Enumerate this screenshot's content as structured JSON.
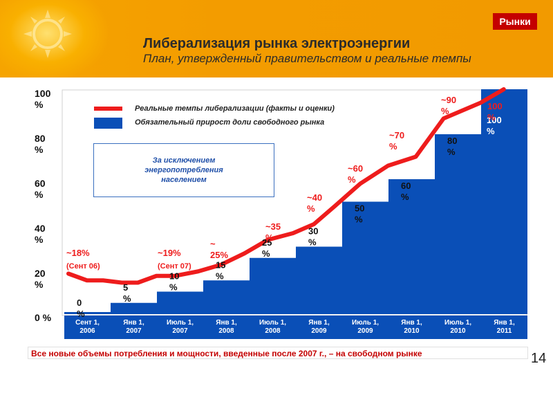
{
  "badge": "Рынки",
  "title": "Либерализация рынка электроэнергии",
  "subtitle": "План, утвержденный правительством и реальные темпы",
  "legend": {
    "line_label": "Реальные темпы либерализации (факты и оценки)",
    "bar_label": "Обязательный прирост доли свободного рынка",
    "line_color": "#ee1c1c",
    "bar_color": "#0a4fb7"
  },
  "note": "За исключением энергопотребления населением",
  "footer": "Все новые объемы потребления и мощности, введенные после 2007 г., – на свободном рынке",
  "page_number": "14",
  "chart_data": {
    "type": "bar",
    "title": "Либерализация рынка электроэнергии",
    "ylim": [
      0,
      100
    ],
    "y_ticks": [
      "0 %",
      "20 %",
      "40 %",
      "60 %",
      "80 %",
      "100 %"
    ],
    "categories": [
      "Сент 1, 2006",
      "Янв 1, 2007",
      "Июль 1, 2007",
      "Янв 1, 2008",
      "Июль 1, 2008",
      "Янв 1, 2009",
      "Июль 1, 2009",
      "Янв 1, 2010",
      "Июль 1, 2010",
      "Янв 1, 2011"
    ],
    "series": [
      {
        "name": "Обязательный прирост доли свободного рынка",
        "type": "bar",
        "values": [
          0,
          5,
          10,
          15,
          25,
          30,
          50,
          60,
          80,
          100
        ],
        "labels": [
          "0 %",
          "5 %",
          "10 %",
          "15 %",
          "25 %",
          "30 %",
          "50 %",
          "60 %",
          "80 %",
          "100 %"
        ]
      },
      {
        "name": "Реальные темпы либерализации (факты и оценки)",
        "type": "line",
        "x": [
          0,
          0.4,
          0.75,
          1.15,
          1.5,
          1.9,
          2.3,
          2.8,
          3.3,
          3.8,
          4.3,
          4.85,
          5.3,
          5.75,
          6.3,
          6.9,
          7.5,
          8.1,
          8.9,
          9.4
        ],
        "values": [
          18,
          15,
          15,
          14,
          14,
          17,
          17,
          19,
          22,
          27,
          33,
          36,
          40,
          48,
          58,
          66,
          70,
          87,
          94,
          100
        ]
      }
    ],
    "annotations": [
      {
        "text": "~18%",
        "sub": "(Сент 06)"
      },
      {
        "text": "~19%",
        "sub": "(Сент 07)"
      },
      {
        "text": "~ 25%"
      },
      {
        "text": "~35 %"
      },
      {
        "text": "~40 %"
      },
      {
        "text": "~60 %"
      },
      {
        "text": "~70 %"
      },
      {
        "text": "~90 %"
      },
      {
        "text": "100 %"
      }
    ]
  }
}
